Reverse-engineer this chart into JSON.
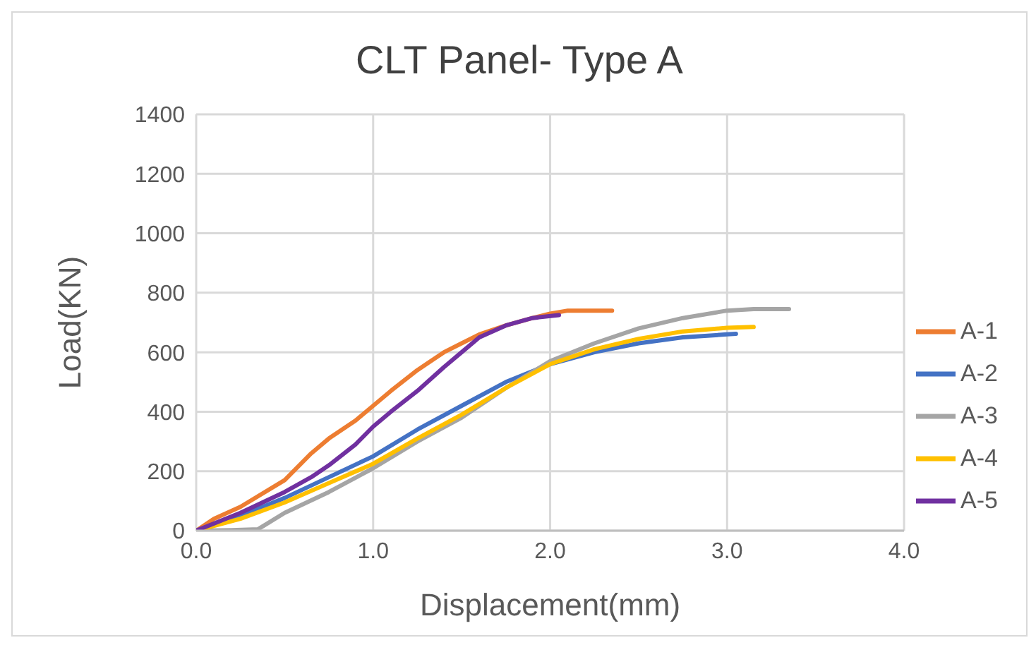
{
  "chart_data": {
    "type": "line",
    "title": "CLT Panel- Type A",
    "xlabel": "Displacement(mm)",
    "ylabel": "Load(KN)",
    "xlim": [
      0,
      4
    ],
    "xticks": [
      {
        "value": 0,
        "label": "0.0"
      },
      {
        "value": 1,
        "label": "1.0"
      },
      {
        "value": 2,
        "label": "2.0"
      },
      {
        "value": 3,
        "label": "3.0"
      },
      {
        "value": 4,
        "label": "4.0"
      }
    ],
    "ylim": [
      0,
      1400
    ],
    "yticks": [
      0,
      200,
      400,
      600,
      800,
      1000,
      1200,
      1400
    ],
    "grid": true,
    "legend": "right",
    "marker": "none",
    "line_style": "solid",
    "series": [
      {
        "name": "A-1",
        "color": "#ed7d31",
        "x": [
          0,
          0.1,
          0.25,
          0.5,
          0.65,
          0.75,
          0.9,
          1.0,
          1.1,
          1.25,
          1.4,
          1.5,
          1.6,
          1.75,
          1.9,
          2.0,
          2.1,
          2.35
        ],
        "values": [
          0,
          40,
          80,
          170,
          260,
          310,
          370,
          420,
          470,
          540,
          600,
          630,
          660,
          690,
          715,
          730,
          740,
          740
        ]
      },
      {
        "name": "A-2",
        "color": "#4472c4",
        "x": [
          0,
          0.25,
          0.5,
          0.75,
          1.0,
          1.25,
          1.5,
          1.75,
          2.0,
          2.25,
          2.5,
          2.75,
          3.0,
          3.05
        ],
        "values": [
          0,
          50,
          110,
          180,
          250,
          340,
          420,
          500,
          560,
          600,
          630,
          650,
          660,
          662
        ]
      },
      {
        "name": "A-3",
        "color": "#a5a5a5",
        "x": [
          0,
          0.2,
          0.35,
          0.5,
          0.75,
          1.0,
          1.25,
          1.5,
          1.75,
          2.0,
          2.25,
          2.5,
          2.75,
          3.0,
          3.15,
          3.35
        ],
        "values": [
          0,
          2,
          5,
          60,
          130,
          210,
          300,
          380,
          480,
          570,
          630,
          680,
          715,
          740,
          745,
          745
        ]
      },
      {
        "name": "A-4",
        "color": "#ffc000",
        "x": [
          0,
          0.25,
          0.5,
          0.75,
          1.0,
          1.25,
          1.5,
          1.75,
          2.0,
          2.25,
          2.5,
          2.75,
          3.0,
          3.15
        ],
        "values": [
          0,
          40,
          95,
          160,
          225,
          310,
          390,
          480,
          560,
          610,
          645,
          670,
          682,
          685
        ]
      },
      {
        "name": "A-5",
        "color": "#7030a0",
        "x": [
          0,
          0.25,
          0.5,
          0.65,
          0.75,
          0.9,
          1.0,
          1.1,
          1.25,
          1.4,
          1.5,
          1.6,
          1.75,
          1.9,
          2.05
        ],
        "values": [
          0,
          60,
          130,
          180,
          220,
          290,
          350,
          400,
          470,
          550,
          600,
          650,
          690,
          715,
          725
        ]
      }
    ]
  }
}
